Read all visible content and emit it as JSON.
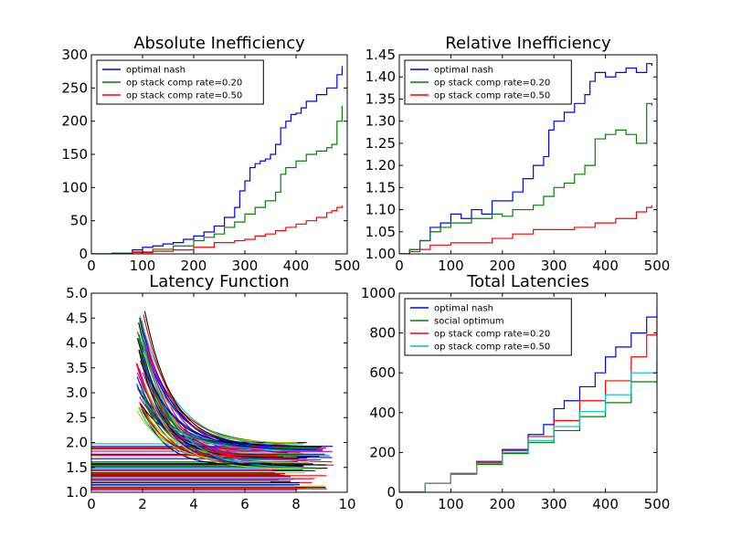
{
  "chart_data": [
    {
      "type": "line",
      "title": "Absolute Inefficiency",
      "xlim": [
        0,
        500
      ],
      "ylim": [
        0,
        300
      ],
      "xticks": [
        "0",
        "100",
        "200",
        "300",
        "400",
        "500"
      ],
      "yticks": [
        "0",
        "50",
        "100",
        "150",
        "200",
        "250",
        "300"
      ],
      "legend_position": "top-left",
      "series": [
        {
          "name": "optimal nash",
          "color": "#0000ff",
          "x": [
            0,
            40,
            80,
            100,
            120,
            140,
            160,
            180,
            200,
            220,
            240,
            260,
            280,
            290,
            300,
            310,
            320,
            330,
            340,
            350,
            360,
            370,
            380,
            390,
            400,
            410,
            420,
            440,
            460,
            480,
            490
          ],
          "y": [
            0,
            1,
            6,
            10,
            12,
            15,
            17,
            22,
            27,
            33,
            42,
            55,
            70,
            95,
            110,
            130,
            136,
            140,
            143,
            150,
            165,
            190,
            200,
            210,
            212,
            220,
            230,
            240,
            250,
            270,
            283
          ]
        },
        {
          "name": "op stack comp rate=0.20",
          "color": "#008000",
          "x": [
            0,
            40,
            80,
            120,
            160,
            200,
            220,
            240,
            260,
            280,
            300,
            320,
            340,
            360,
            370,
            380,
            400,
            420,
            440,
            460,
            470,
            480,
            490
          ],
          "y": [
            0,
            1,
            3,
            7,
            12,
            20,
            25,
            30,
            40,
            48,
            60,
            70,
            80,
            93,
            120,
            130,
            140,
            150,
            155,
            160,
            165,
            200,
            223
          ]
        },
        {
          "name": "op stack comp rate=0.50",
          "color": "#ff0000",
          "x": [
            0,
            40,
            80,
            120,
            160,
            200,
            240,
            280,
            300,
            320,
            340,
            360,
            380,
            400,
            420,
            440,
            460,
            470,
            480,
            490
          ],
          "y": [
            0,
            0.5,
            2,
            4,
            6,
            10,
            17,
            20,
            22,
            27,
            30,
            35,
            40,
            45,
            50,
            55,
            62,
            65,
            70,
            73
          ]
        }
      ]
    },
    {
      "type": "line",
      "title": "Relative Inefficiency",
      "xlim": [
        0,
        500
      ],
      "ylim": [
        1.0,
        1.45
      ],
      "xticks": [
        "0",
        "100",
        "200",
        "300",
        "400",
        "500"
      ],
      "yticks": [
        "1.00",
        "1.05",
        "1.10",
        "1.15",
        "1.20",
        "1.25",
        "1.30",
        "1.35",
        "1.40",
        "1.45"
      ],
      "legend_position": "top-left",
      "series": [
        {
          "name": "optimal nash",
          "color": "#0000ff",
          "x": [
            0,
            20,
            40,
            60,
            80,
            100,
            120,
            140,
            160,
            180,
            200,
            220,
            240,
            260,
            280,
            290,
            300,
            320,
            340,
            360,
            370,
            380,
            400,
            420,
            440,
            460,
            480,
            490
          ],
          "y": [
            1.0,
            1.01,
            1.03,
            1.06,
            1.07,
            1.09,
            1.08,
            1.1,
            1.09,
            1.12,
            1.12,
            1.14,
            1.17,
            1.2,
            1.22,
            1.28,
            1.3,
            1.32,
            1.34,
            1.36,
            1.39,
            1.41,
            1.4,
            1.41,
            1.42,
            1.41,
            1.43,
            1.425
          ]
        },
        {
          "name": "op stack comp rate=0.20",
          "color": "#008000",
          "x": [
            0,
            20,
            40,
            60,
            80,
            100,
            140,
            180,
            200,
            220,
            260,
            280,
            300,
            320,
            340,
            360,
            380,
            400,
            420,
            440,
            460,
            480,
            490
          ],
          "y": [
            1.0,
            1.01,
            1.03,
            1.05,
            1.06,
            1.07,
            1.08,
            1.09,
            1.085,
            1.1,
            1.11,
            1.13,
            1.15,
            1.16,
            1.18,
            1.2,
            1.26,
            1.27,
            1.28,
            1.27,
            1.25,
            1.34,
            1.335
          ]
        },
        {
          "name": "op stack comp rate=0.50",
          "color": "#ff0000",
          "x": [
            0,
            20,
            40,
            60,
            100,
            140,
            180,
            220,
            260,
            300,
            340,
            380,
            420,
            460,
            480,
            490
          ],
          "y": [
            1.0,
            1.005,
            1.01,
            1.02,
            1.025,
            1.025,
            1.035,
            1.045,
            1.055,
            1.055,
            1.06,
            1.07,
            1.08,
            1.095,
            1.105,
            1.11
          ]
        }
      ]
    },
    {
      "type": "line",
      "title": "Latency Function",
      "xlim": [
        0,
        10
      ],
      "ylim": [
        1.0,
        5.0
      ],
      "xticks": [
        "0",
        "2",
        "4",
        "6",
        "8",
        "10"
      ],
      "yticks": [
        "1.0",
        "1.5",
        "2.0",
        "2.5",
        "3.0",
        "3.5",
        "4.0",
        "4.5",
        "5.0"
      ],
      "series_count": 120,
      "palette": [
        "#0000ff",
        "#008000",
        "#ff0000",
        "#00bfbf",
        "#bf00bf",
        "#bfbf00",
        "#000000"
      ],
      "description_curves": "many decaying latency curves starting near x=1.8 with heights up to 4.65 converging toward 1.5-2.0, plus many flat horizontal lines between 1.05 and 2.0 spanning x=0 to ~9"
    },
    {
      "type": "line",
      "title": "Total Latencies",
      "xlim": [
        0,
        500
      ],
      "ylim": [
        0,
        1000
      ],
      "xticks": [
        "0",
        "100",
        "200",
        "300",
        "400",
        "500"
      ],
      "yticks": [
        "0",
        "200",
        "400",
        "600",
        "800",
        "1000"
      ],
      "legend_position": "top-left",
      "series": [
        {
          "name": "optimal nash",
          "color": "#0000ff",
          "x": [
            0,
            50,
            100,
            150,
            200,
            250,
            280,
            300,
            320,
            350,
            380,
            400,
            420,
            450,
            480,
            500
          ],
          "y": [
            0,
            45,
            95,
            155,
            215,
            290,
            340,
            420,
            460,
            530,
            600,
            680,
            730,
            800,
            880,
            940
          ]
        },
        {
          "name": "social optimum",
          "color": "#008000",
          "x": [
            0,
            50,
            100,
            150,
            200,
            250,
            300,
            350,
            400,
            450,
            500
          ],
          "y": [
            0,
            44,
            90,
            140,
            195,
            250,
            310,
            380,
            450,
            555,
            660
          ]
        },
        {
          "name": "op stack comp rate=0.20",
          "color": "#ff0000",
          "x": [
            0,
            50,
            100,
            150,
            200,
            250,
            300,
            350,
            400,
            450,
            480,
            500
          ],
          "y": [
            0,
            45,
            93,
            150,
            210,
            280,
            360,
            460,
            560,
            680,
            790,
            885
          ]
        },
        {
          "name": "op stack comp rate=0.50",
          "color": "#00bfbf",
          "x": [
            0,
            50,
            100,
            150,
            200,
            250,
            300,
            350,
            400,
            450,
            500
          ],
          "y": [
            0,
            44,
            91,
            145,
            200,
            260,
            330,
            405,
            490,
            600,
            735
          ]
        }
      ]
    }
  ]
}
